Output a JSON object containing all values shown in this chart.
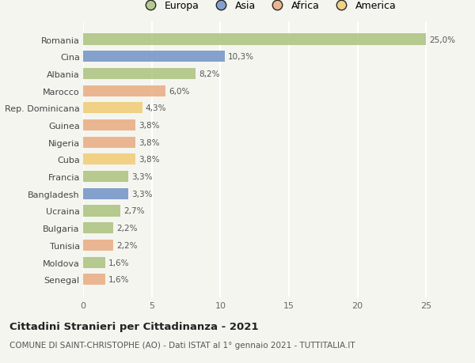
{
  "categories": [
    "Romania",
    "Cina",
    "Albania",
    "Marocco",
    "Rep. Dominicana",
    "Guinea",
    "Nigeria",
    "Cuba",
    "Francia",
    "Bangladesh",
    "Ucraina",
    "Bulgaria",
    "Tunisia",
    "Moldova",
    "Senegal"
  ],
  "values": [
    25.0,
    10.3,
    8.2,
    6.0,
    4.3,
    3.8,
    3.8,
    3.8,
    3.3,
    3.3,
    2.7,
    2.2,
    2.2,
    1.6,
    1.6
  ],
  "labels": [
    "25,0%",
    "10,3%",
    "8,2%",
    "6,0%",
    "4,3%",
    "3,8%",
    "3,8%",
    "3,8%",
    "3,3%",
    "3,3%",
    "2,7%",
    "2,2%",
    "2,2%",
    "1,6%",
    "1,6%"
  ],
  "colors": [
    "#a8c07a",
    "#6b8dc4",
    "#a8c07a",
    "#e8a87c",
    "#f0c96e",
    "#e8a87c",
    "#e8a87c",
    "#f0c96e",
    "#a8c07a",
    "#6b8dc4",
    "#a8c07a",
    "#a8c07a",
    "#e8a87c",
    "#a8c07a",
    "#e8a87c"
  ],
  "legend": [
    {
      "label": "Europa",
      "color": "#a8c07a"
    },
    {
      "label": "Asia",
      "color": "#6b8dc4"
    },
    {
      "label": "Africa",
      "color": "#e8a87c"
    },
    {
      "label": "America",
      "color": "#f0c96e"
    }
  ],
  "xlim": [
    0,
    27
  ],
  "xticks": [
    0,
    5,
    10,
    15,
    20,
    25
  ],
  "title": "Cittadini Stranieri per Cittadinanza - 2021",
  "subtitle": "COMUNE DI SAINT-CHRISTOPHE (AO) - Dati ISTAT al 1° gennaio 2021 - TUTTITALIA.IT",
  "background_color": "#f5f5f0",
  "bar_alpha": 0.82
}
